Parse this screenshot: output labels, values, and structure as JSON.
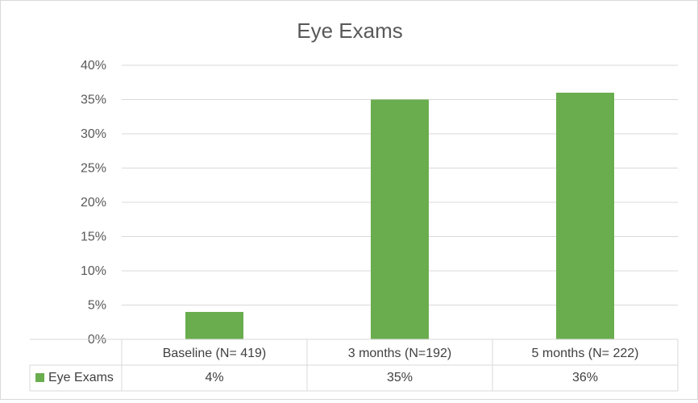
{
  "chart_data": {
    "type": "bar",
    "title": "Eye Exams",
    "xlabel": "",
    "ylabel": "",
    "categories": [
      "Baseline (N= 419)",
      "3 months (N=192)",
      "5 months (N= 222)"
    ],
    "series": [
      {
        "name": "Eye Exams",
        "values": [
          4,
          35,
          36
        ],
        "labels": [
          "4%",
          "35%",
          "36%"
        ],
        "color": "#6aad4e"
      }
    ],
    "ylim": [
      0,
      40
    ],
    "yticks": [
      0,
      5,
      10,
      15,
      20,
      25,
      30,
      35,
      40
    ],
    "ytick_labels": [
      "0%",
      "5%",
      "10%",
      "15%",
      "20%",
      "25%",
      "30%",
      "35%",
      "40%"
    ],
    "grid": true,
    "legend": "data-table",
    "data_table": true
  }
}
